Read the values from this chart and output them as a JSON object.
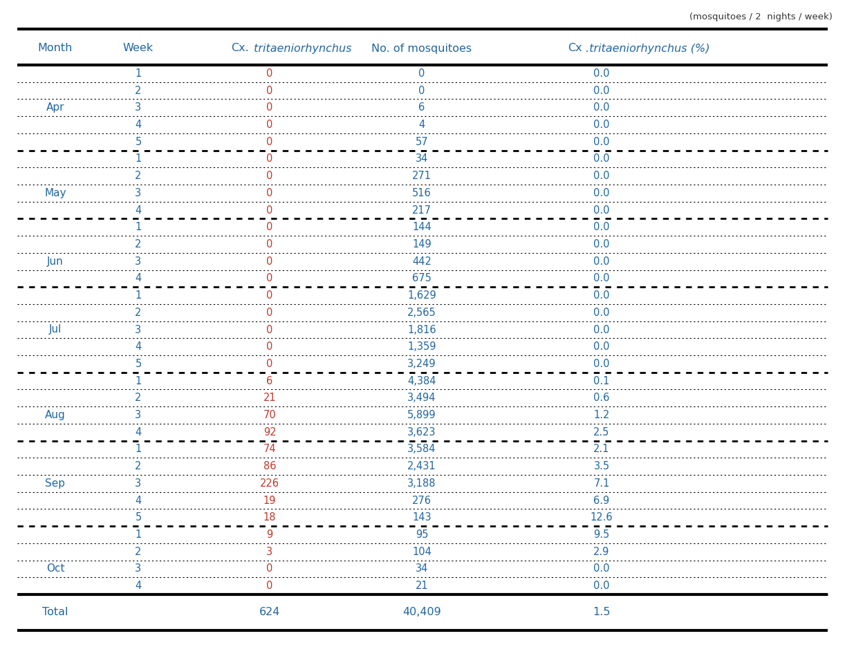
{
  "unit_text": "(mosquitoes / 2  nights / week)",
  "col_headers": [
    "Month",
    "Week",
    "Cx.  tritaeniorhynchus",
    "No. of mosquitoes",
    "Cx .tritaeniorhynchus (%)"
  ],
  "months": [
    {
      "name": "Apr",
      "rows": [
        [
          1,
          0,
          0,
          "0.0"
        ],
        [
          2,
          0,
          0,
          "0.0"
        ],
        [
          3,
          0,
          6,
          "0.0"
        ],
        [
          4,
          0,
          4,
          "0.0"
        ],
        [
          5,
          0,
          57,
          "0.0"
        ]
      ]
    },
    {
      "name": "May",
      "rows": [
        [
          1,
          0,
          34,
          "0.0"
        ],
        [
          2,
          0,
          271,
          "0.0"
        ],
        [
          3,
          0,
          516,
          "0.0"
        ],
        [
          4,
          0,
          217,
          "0.0"
        ]
      ]
    },
    {
      "name": "Jun",
      "rows": [
        [
          1,
          0,
          144,
          "0.0"
        ],
        [
          2,
          0,
          149,
          "0.0"
        ],
        [
          3,
          0,
          442,
          "0.0"
        ],
        [
          4,
          0,
          675,
          "0.0"
        ]
      ]
    },
    {
      "name": "Jul",
      "rows": [
        [
          1,
          0,
          1629,
          "0.0"
        ],
        [
          2,
          0,
          2565,
          "0.0"
        ],
        [
          3,
          0,
          1816,
          "0.0"
        ],
        [
          4,
          0,
          1359,
          "0.0"
        ],
        [
          5,
          0,
          3249,
          "0.0"
        ]
      ]
    },
    {
      "name": "Aug",
      "rows": [
        [
          1,
          6,
          4384,
          "0.1"
        ],
        [
          2,
          21,
          3494,
          "0.6"
        ],
        [
          3,
          70,
          5899,
          "1.2"
        ],
        [
          4,
          92,
          3623,
          "2.5"
        ]
      ]
    },
    {
      "name": "Sep",
      "rows": [
        [
          1,
          74,
          3584,
          "2.1"
        ],
        [
          2,
          86,
          2431,
          "3.5"
        ],
        [
          3,
          226,
          3188,
          "7.1"
        ],
        [
          4,
          19,
          276,
          "6.9"
        ],
        [
          5,
          18,
          143,
          "12.6"
        ]
      ]
    },
    {
      "name": "Oct",
      "rows": [
        [
          1,
          9,
          95,
          "9.5"
        ],
        [
          2,
          3,
          104,
          "2.9"
        ],
        [
          3,
          0,
          34,
          "0.0"
        ],
        [
          4,
          0,
          21,
          "0.0"
        ]
      ]
    }
  ],
  "total": [
    "Total",
    "",
    "624",
    "40,409",
    "1.5"
  ],
  "header_color": "#2166a0",
  "month_color": "#2166a0",
  "week_color": "#2166a0",
  "cx_color": "#c0392b",
  "mosquito_color": "#2166a0",
  "pct_color": "#2166a0",
  "total_cx_color": "#2166a0",
  "bg_color": "#ffffff"
}
